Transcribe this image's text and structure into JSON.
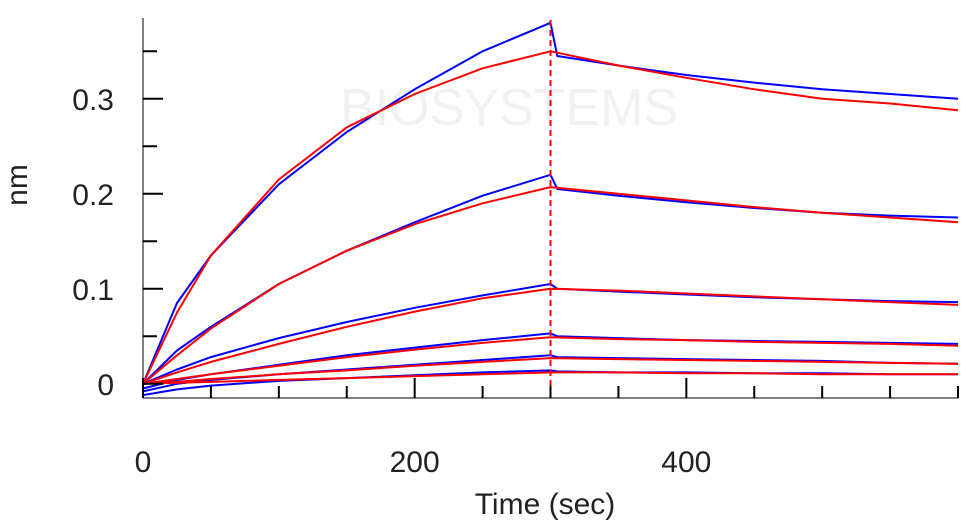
{
  "chart_data": {
    "type": "line",
    "title": "",
    "xlabel": "Time (sec)",
    "ylabel": "nm",
    "xlim": [
      0,
      600
    ],
    "ylim": [
      -0.015,
      0.385
    ],
    "x_ticks": [
      0,
      200,
      400
    ],
    "x_minor_step": 50,
    "y_ticks": [
      0,
      0.1,
      0.2,
      0.3
    ],
    "y_tick_labels": [
      "0",
      "0.1",
      "0.2",
      "0.3"
    ],
    "y_minor_step": 0.05,
    "grid": false,
    "legend": "none",
    "dissociation_start": 300,
    "watermark_text": "BIOSYSTEMS",
    "colors": {
      "measured": "#0000ff",
      "fit": "#ff0000",
      "marker": "#ff0000",
      "axis": "#808080"
    },
    "series": [
      {
        "role": "measured",
        "x": [
          0,
          25,
          50,
          100,
          150,
          200,
          250,
          300,
          305,
          350,
          400,
          450,
          500,
          550,
          600
        ],
        "y": [
          0.0,
          0.085,
          0.135,
          0.21,
          0.265,
          0.31,
          0.35,
          0.38,
          0.345,
          0.335,
          0.325,
          0.317,
          0.31,
          0.305,
          0.3
        ]
      },
      {
        "role": "fit",
        "x": [
          0,
          25,
          50,
          100,
          150,
          200,
          250,
          300,
          350,
          400,
          450,
          500,
          550,
          600
        ],
        "y": [
          0.0,
          0.075,
          0.135,
          0.215,
          0.27,
          0.305,
          0.332,
          0.35,
          0.335,
          0.322,
          0.31,
          0.3,
          0.295,
          0.288
        ]
      },
      {
        "role": "measured",
        "x": [
          0,
          25,
          50,
          100,
          150,
          200,
          250,
          300,
          305,
          350,
          400,
          450,
          500,
          550,
          600
        ],
        "y": [
          0.0,
          0.035,
          0.06,
          0.105,
          0.14,
          0.17,
          0.198,
          0.22,
          0.205,
          0.198,
          0.191,
          0.185,
          0.18,
          0.177,
          0.175
        ]
      },
      {
        "role": "fit",
        "x": [
          0,
          25,
          50,
          100,
          150,
          200,
          250,
          300,
          350,
          400,
          450,
          500,
          550,
          600
        ],
        "y": [
          0.0,
          0.03,
          0.058,
          0.105,
          0.14,
          0.168,
          0.19,
          0.207,
          0.2,
          0.193,
          0.186,
          0.18,
          0.175,
          0.17
        ]
      },
      {
        "role": "measured",
        "x": [
          0,
          25,
          50,
          100,
          150,
          200,
          250,
          300,
          305,
          350,
          400,
          450,
          500,
          550,
          600
        ],
        "y": [
          0.0,
          0.015,
          0.028,
          0.048,
          0.065,
          0.08,
          0.093,
          0.105,
          0.1,
          0.097,
          0.094,
          0.091,
          0.089,
          0.087,
          0.086
        ]
      },
      {
        "role": "fit",
        "x": [
          0,
          25,
          50,
          100,
          150,
          200,
          250,
          300,
          350,
          400,
          450,
          500,
          550,
          600
        ],
        "y": [
          0.0,
          0.012,
          0.023,
          0.042,
          0.06,
          0.076,
          0.09,
          0.1,
          0.098,
          0.095,
          0.092,
          0.089,
          0.086,
          0.083
        ]
      },
      {
        "role": "measured",
        "x": [
          0,
          25,
          50,
          100,
          150,
          200,
          250,
          300,
          305,
          350,
          400,
          450,
          500,
          550,
          600
        ],
        "y": [
          -0.005,
          0.004,
          0.01,
          0.02,
          0.03,
          0.038,
          0.046,
          0.053,
          0.05,
          0.048,
          0.046,
          0.045,
          0.044,
          0.043,
          0.042
        ]
      },
      {
        "role": "fit",
        "x": [
          0,
          25,
          50,
          100,
          150,
          200,
          250,
          300,
          350,
          400,
          450,
          500,
          550,
          600
        ],
        "y": [
          0.0,
          0.005,
          0.01,
          0.019,
          0.028,
          0.036,
          0.043,
          0.049,
          0.047,
          0.046,
          0.044,
          0.043,
          0.042,
          0.04
        ]
      },
      {
        "role": "measured",
        "x": [
          0,
          25,
          50,
          100,
          150,
          200,
          250,
          300,
          305,
          350,
          400,
          450,
          500,
          550,
          600
        ],
        "y": [
          -0.008,
          0.0,
          0.004,
          0.01,
          0.015,
          0.02,
          0.025,
          0.03,
          0.028,
          0.027,
          0.026,
          0.025,
          0.024,
          0.022,
          0.021
        ]
      },
      {
        "role": "fit",
        "x": [
          0,
          25,
          50,
          100,
          150,
          200,
          250,
          300,
          350,
          400,
          450,
          500,
          550,
          600
        ],
        "y": [
          0.0,
          0.002,
          0.005,
          0.01,
          0.014,
          0.019,
          0.023,
          0.027,
          0.026,
          0.025,
          0.024,
          0.023,
          0.022,
          0.021
        ]
      },
      {
        "role": "measured",
        "x": [
          0,
          25,
          50,
          100,
          150,
          200,
          250,
          300,
          305,
          350,
          400,
          450,
          500,
          550,
          600
        ],
        "y": [
          -0.012,
          -0.006,
          -0.002,
          0.003,
          0.006,
          0.009,
          0.012,
          0.014,
          0.013,
          0.012,
          0.012,
          0.011,
          0.011,
          0.01,
          0.01
        ]
      },
      {
        "role": "fit",
        "x": [
          0,
          25,
          50,
          100,
          150,
          200,
          250,
          300,
          350,
          400,
          450,
          500,
          550,
          600
        ],
        "y": [
          0.0,
          0.001,
          0.002,
          0.004,
          0.006,
          0.008,
          0.01,
          0.012,
          0.012,
          0.011,
          0.011,
          0.01,
          0.01,
          0.01
        ]
      }
    ]
  }
}
